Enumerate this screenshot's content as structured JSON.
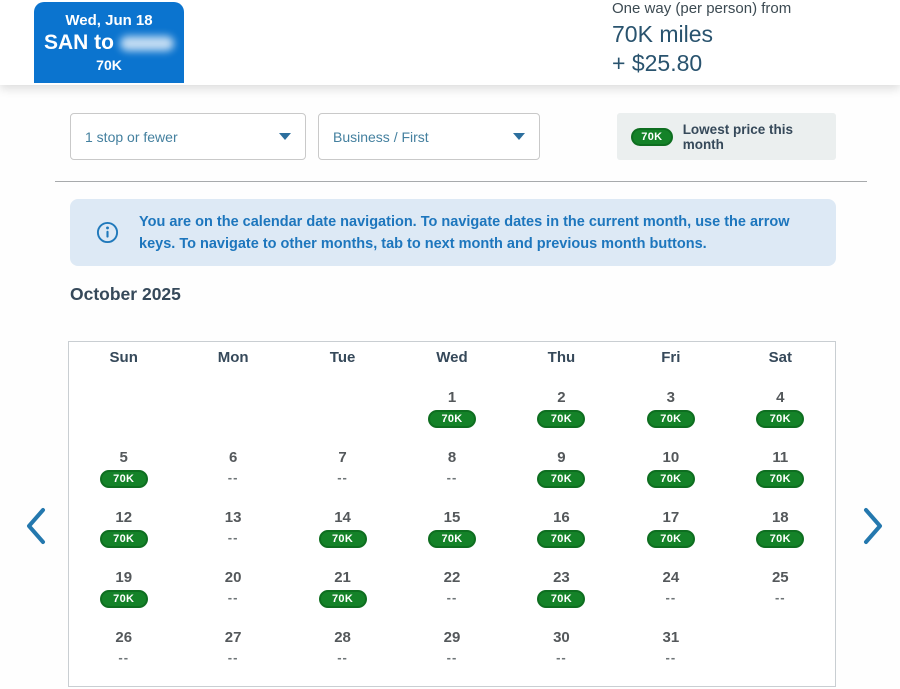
{
  "header": {
    "card": {
      "date": "Wed, Jun 18",
      "route_prefix": "SAN to",
      "price": "70K"
    },
    "summary": {
      "label": "One way (per person) from",
      "miles": "70K miles",
      "fees": "+ $25.80"
    }
  },
  "filters": {
    "stops": {
      "value": "1 stop or fewer"
    },
    "cabin": {
      "value": "Business / First"
    }
  },
  "legend": {
    "badge": "70K",
    "label": "Lowest price this month"
  },
  "info_banner": {
    "text": "You are on the calendar date navigation. To navigate dates in the current month, use the arrow keys. To navigate to other months, tab to next month and previous month buttons."
  },
  "calendar": {
    "month_title": "October 2025",
    "day_headers": [
      "Sun",
      "Mon",
      "Tue",
      "Wed",
      "Thu",
      "Fri",
      "Sat"
    ],
    "badge_text": "70K",
    "no_price": "--",
    "weeks": [
      [
        null,
        null,
        null,
        {
          "day": "1",
          "price": "70K"
        },
        {
          "day": "2",
          "price": "70K"
        },
        {
          "day": "3",
          "price": "70K"
        },
        {
          "day": "4",
          "price": "70K"
        }
      ],
      [
        {
          "day": "5",
          "price": "70K"
        },
        {
          "day": "6",
          "price": "--"
        },
        {
          "day": "7",
          "price": "--"
        },
        {
          "day": "8",
          "price": "--"
        },
        {
          "day": "9",
          "price": "70K"
        },
        {
          "day": "10",
          "price": "70K"
        },
        {
          "day": "11",
          "price": "70K"
        }
      ],
      [
        {
          "day": "12",
          "price": "70K"
        },
        {
          "day": "13",
          "price": "--"
        },
        {
          "day": "14",
          "price": "70K"
        },
        {
          "day": "15",
          "price": "70K"
        },
        {
          "day": "16",
          "price": "70K"
        },
        {
          "day": "17",
          "price": "70K"
        },
        {
          "day": "18",
          "price": "70K"
        }
      ],
      [
        {
          "day": "19",
          "price": "70K"
        },
        {
          "day": "20",
          "price": "--"
        },
        {
          "day": "21",
          "price": "70K"
        },
        {
          "day": "22",
          "price": "--"
        },
        {
          "day": "23",
          "price": "70K"
        },
        {
          "day": "24",
          "price": "--"
        },
        {
          "day": "25",
          "price": "--"
        }
      ],
      [
        {
          "day": "26",
          "price": "--"
        },
        {
          "day": "27",
          "price": "--"
        },
        {
          "day": "28",
          "price": "--"
        },
        {
          "day": "29",
          "price": "--"
        },
        {
          "day": "30",
          "price": "--"
        },
        {
          "day": "31",
          "price": "--"
        },
        null
      ]
    ]
  },
  "colors": {
    "brand_blue": "#0b74cf",
    "award_green": "#148228",
    "banner_blue_bg": "#dde9f5",
    "banner_blue_text": "#1d76bd",
    "navy_text": "#36495a"
  }
}
